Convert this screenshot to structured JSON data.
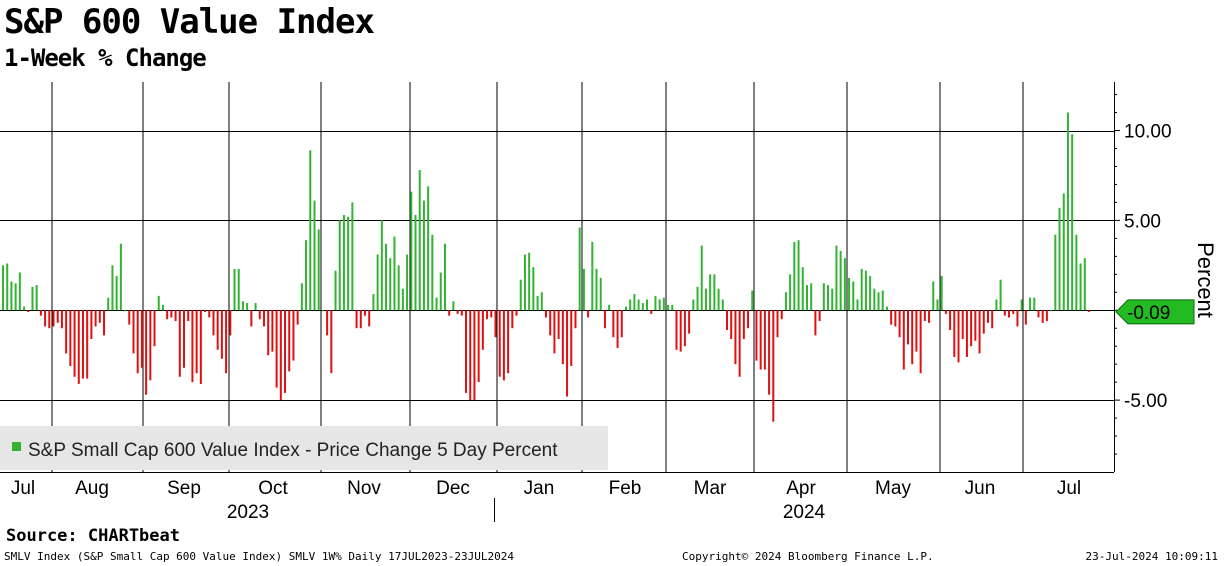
{
  "title": "S&P 600 Value Index",
  "subtitle": "1-Week % Change",
  "footer": {
    "source": "Source: CHARTbeat",
    "left": "SMLV Index (S&P Small Cap 600 Value Index) SMLV 1W%  Daily 17JUL2023-23JUL2024",
    "middle": "Copyright© 2024 Bloomberg Finance L.P.",
    "right": "23-Jul-2024 10:09:11"
  },
  "chart_data": {
    "type": "bar",
    "title": "S&P 600 Value Index",
    "subtitle": "1-Week % Change",
    "ylabel": "Percent",
    "ylim": [
      -9.0,
      12.7
    ],
    "yticks": [
      10,
      5,
      -5
    ],
    "ytick_labels": [
      "10.00",
      "5.00",
      "-5.00"
    ],
    "month_labels": [
      "Jul",
      "Aug",
      "Sep",
      "Oct",
      "Nov",
      "Dec",
      "Jan",
      "Feb",
      "Mar",
      "Apr",
      "May",
      "Jun",
      "Jul"
    ],
    "year_labels": [
      "2023",
      "2024"
    ],
    "legend": "S&P Small Cap 600 Value Index - Price Change 5 Day Percent",
    "last_value": -0.09,
    "last_value_label": "-0.09",
    "colors": {
      "positive": "#33b233",
      "negative": "#dd1111",
      "marker": "#22bb22"
    },
    "values": [
      2.5,
      2.6,
      1.6,
      1.5,
      2.1,
      0.2,
      -0.1,
      1.3,
      1.4,
      -0.3,
      -0.9,
      -1.0,
      -0.9,
      -0.7,
      -1.0,
      -2.4,
      -3.1,
      -3.7,
      -4.1,
      -3.8,
      -3.8,
      -1.6,
      -0.9,
      -0.7,
      -1.4,
      0.7,
      2.5,
      1.9,
      3.7,
      0.0,
      -0.8,
      -2.4,
      -3.5,
      -3.2,
      -4.7,
      -3.9,
      -2.0,
      0.8,
      0.3,
      -0.5,
      -0.4,
      -0.6,
      -3.7,
      -3.2,
      -0.6,
      -4.0,
      -3.5,
      -4.1,
      -0.1,
      -0.4,
      -1.4,
      -2.2,
      -2.7,
      -3.5,
      -1.4,
      2.3,
      2.3,
      0.5,
      0.4,
      -0.9,
      0.4,
      -0.5,
      -0.9,
      -2.5,
      -2.3,
      -4.3,
      -5.0,
      -4.6,
      -3.4,
      -2.8,
      -0.8,
      1.5,
      3.9,
      8.9,
      6.1,
      4.5,
      0.0,
      -1.4,
      -3.5,
      2.2,
      5.0,
      5.3,
      5.2,
      6.0,
      -1.0,
      -1.0,
      -0.3,
      -0.9,
      0.9,
      3.1,
      5.0,
      3.7,
      2.9,
      4.1,
      2.5,
      1.2,
      3.1,
      6.6,
      5.3,
      7.8,
      6.1,
      6.9,
      4.2,
      0.7,
      2.1,
      3.7,
      -0.3,
      0.5,
      -0.2,
      -0.3,
      -4.6,
      -5.0,
      -5.0,
      -4.0,
      -2.2,
      -0.5,
      -0.4,
      -1.5,
      -3.7,
      -3.9,
      -3.5,
      -1.0,
      -0.3,
      1.7,
      3.1,
      3.2,
      2.4,
      0.8,
      1.0,
      -0.4,
      -1.4,
      -2.4,
      -1.6,
      -3.0,
      -4.8,
      -3.1,
      -1.0,
      4.6,
      2.3,
      -0.4,
      3.8,
      2.3,
      1.8,
      -1.0,
      0.3,
      -1.5,
      -2.1,
      -1.5,
      0.2,
      0.6,
      0.9,
      0.6,
      0.4,
      0.6,
      -0.2,
      0.8,
      0.6,
      0.7,
      0.3,
      0.3,
      -2.2,
      -2.3,
      -2.0,
      -1.3,
      0.6,
      1.3,
      3.6,
      1.2,
      2.0,
      2.0,
      1.2,
      0.6,
      -1.1,
      -1.6,
      -3.0,
      -3.7,
      -1.6,
      -1.0,
      1.1,
      -2.8,
      -3.3,
      -3.3,
      -4.7,
      -6.2,
      -1.5,
      -0.5,
      1.0,
      2.0,
      3.8,
      3.9,
      2.4,
      1.4,
      1.5,
      -1.4,
      -0.6,
      1.5,
      1.4,
      1.2,
      3.6,
      3.3,
      2.9,
      1.8,
      1.6,
      0.6,
      2.3,
      2.2,
      1.9,
      1.2,
      1.0,
      1.1,
      0.2,
      -0.8,
      -0.9,
      -1.5,
      -3.3,
      -1.9,
      -3.0,
      -2.3,
      -3.5,
      -0.6,
      -0.7,
      1.6,
      0.6,
      1.9,
      -0.2,
      -1.1,
      -2.6,
      -2.9,
      -1.6,
      -2.6,
      -2.0,
      -1.7,
      -2.4,
      -1.3,
      -0.7,
      -1.0,
      0.6,
      1.7,
      -0.3,
      -0.4,
      -0.2,
      -0.9,
      0.6,
      -0.8,
      0.7,
      0.7,
      -0.4,
      -0.7,
      -0.6,
      0.0,
      4.2,
      5.7,
      6.5,
      11.0,
      9.8,
      4.2,
      2.6,
      2.9,
      -0.09
    ]
  }
}
